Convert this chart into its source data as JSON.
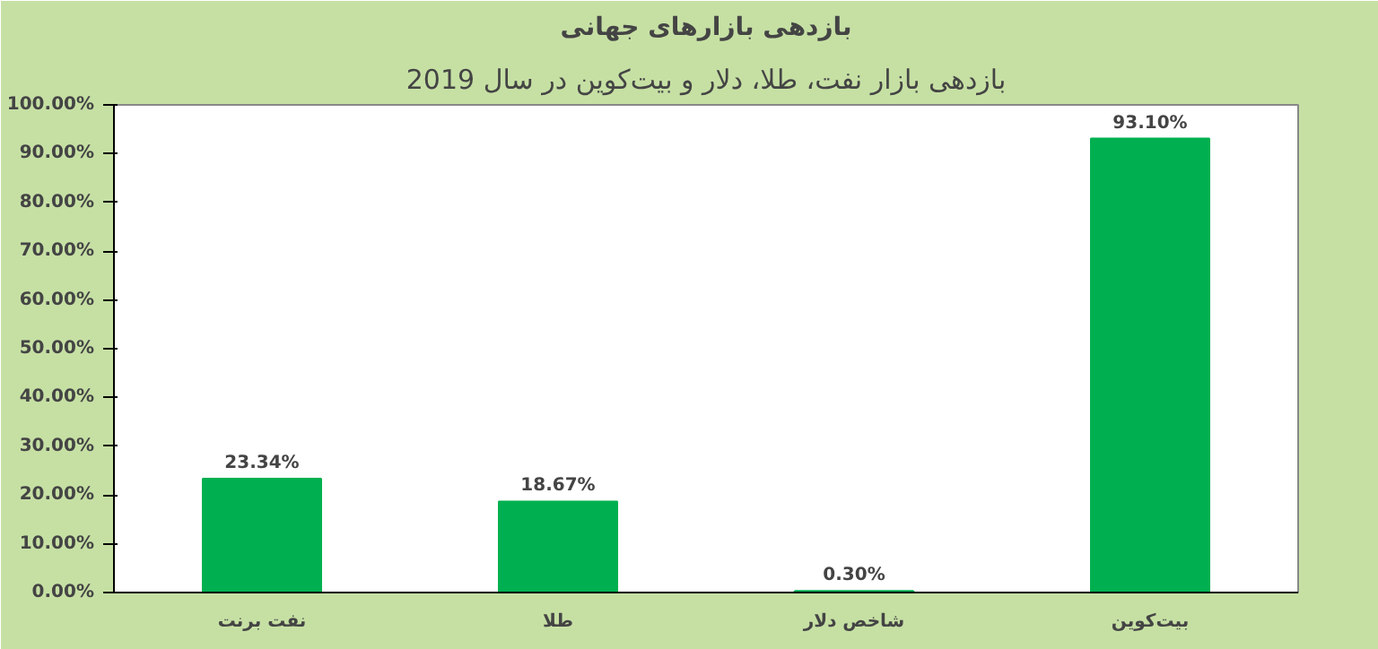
{
  "chart_data": {
    "type": "bar",
    "title": "بازدهی بازارهای جهانی",
    "subtitle": "بازدهی بازار نفت، طلا، دلار و بیت‌کوین در سال 2019",
    "categories": [
      "نفت برنت",
      "طلا",
      "شاخص دلار",
      "بیت‌کوین"
    ],
    "values": [
      23.34,
      18.67,
      0.3,
      93.1
    ],
    "value_labels": [
      "23.34%",
      "18.67%",
      "0.30%",
      "93.10%"
    ],
    "color": "#00b050",
    "ylim": [
      0,
      100
    ],
    "yticks": [
      {
        "value": 0,
        "label": "0.00%"
      },
      {
        "value": 10,
        "label": "10.00%"
      },
      {
        "value": 20,
        "label": "20.00%"
      },
      {
        "value": 30,
        "label": "30.00%"
      },
      {
        "value": 40,
        "label": "40.00%"
      },
      {
        "value": 50,
        "label": "50.00%"
      },
      {
        "value": 60,
        "label": "60.00%"
      },
      {
        "value": 70,
        "label": "70.00%"
      },
      {
        "value": 80,
        "label": "80.00%"
      },
      {
        "value": 90,
        "label": "90.00%"
      },
      {
        "value": 100,
        "label": "100.00%"
      }
    ],
    "grid": false
  }
}
